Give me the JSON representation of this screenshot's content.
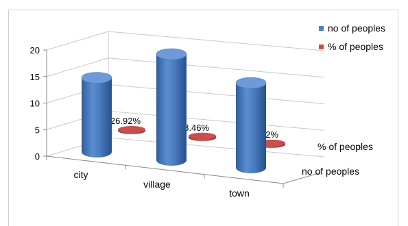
{
  "chart_data": {
    "type": "bar",
    "categories": [
      "city",
      "village",
      "town"
    ],
    "series": [
      {
        "name": "no of peoples",
        "values": [
          14,
          20,
          16
        ],
        "color": "#4F81BD"
      },
      {
        "name": "% of peoples",
        "values": [
          0.2692,
          0.3846,
          0.3462
        ],
        "data_labels": [
          "26.92%",
          "38.46%",
          "34.62%"
        ],
        "color": "#C0504D"
      }
    ],
    "depth_axis_labels": [
      "% of peoples",
      "no of peoples"
    ],
    "y_ticks": [
      "0",
      "5",
      "10",
      "15",
      "20"
    ],
    "ylim": [
      0,
      20
    ],
    "legend_position": "top-right",
    "grid": true
  }
}
